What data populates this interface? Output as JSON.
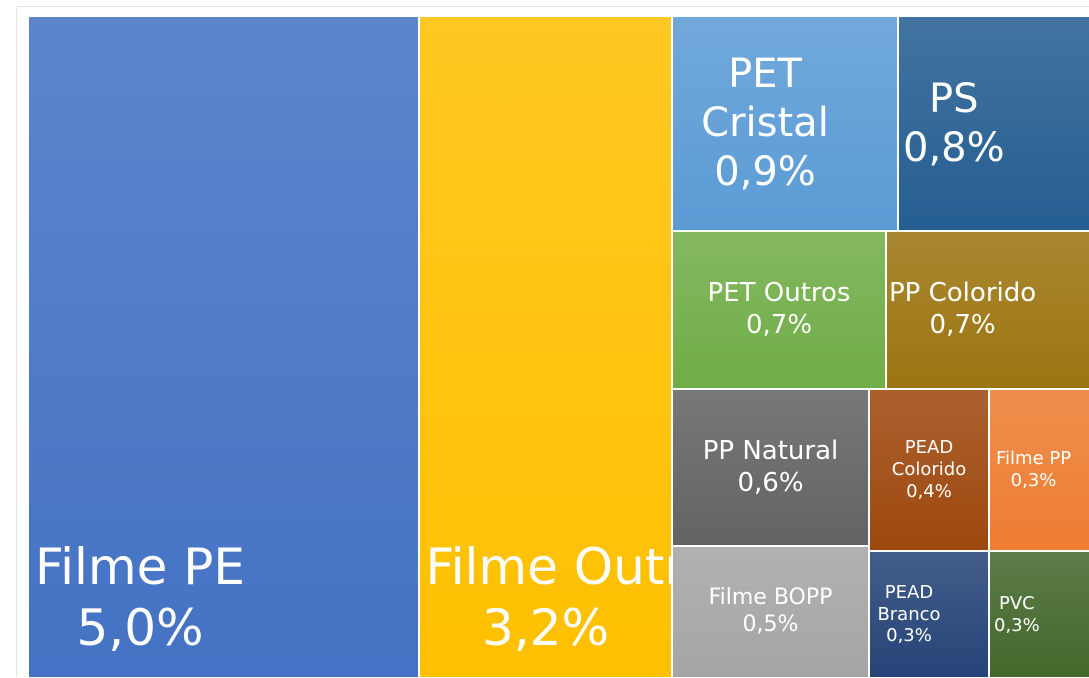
{
  "chart_data": {
    "type": "treemap",
    "categories": [
      "Filme PE",
      "Filme Outros",
      "PET Cristal",
      "PS",
      "PET Outros",
      "PP Colorido",
      "PP Natural",
      "PEAD Colorido",
      "Filme PP",
      "Filme BOPP",
      "PEAD Branco",
      "PVC"
    ],
    "values": [
      5.0,
      3.2,
      0.9,
      0.8,
      0.7,
      0.7,
      0.6,
      0.4,
      0.3,
      0.5,
      0.3,
      0.3
    ],
    "value_labels": [
      "5,0%",
      "3,2%",
      "0,9%",
      "0,8%",
      "0,7%",
      "0,7%",
      "0,6%",
      "0,4%",
      "0,3%",
      "0,5%",
      "0,3%",
      "0,3%"
    ],
    "colors": [
      "#4472c4",
      "#ffc000",
      "#5b9bd5",
      "#255e91",
      "#70ad47",
      "#9c7511",
      "#636363",
      "#9e480e",
      "#ed7d31",
      "#a5a5a5",
      "#264478",
      "#43682b"
    ]
  }
}
